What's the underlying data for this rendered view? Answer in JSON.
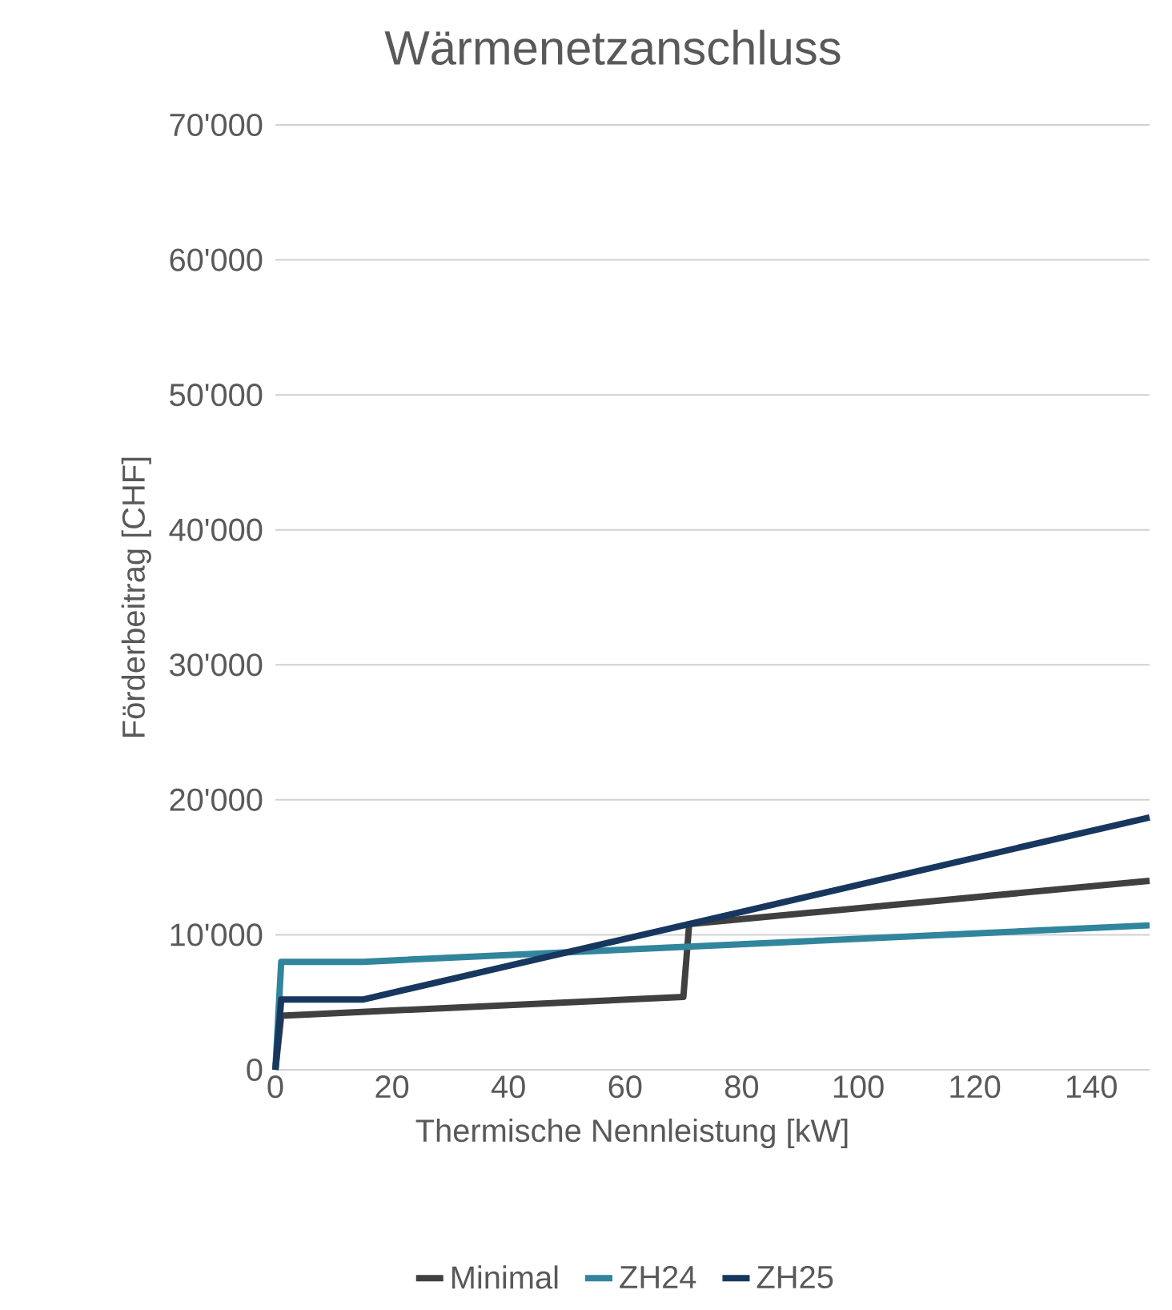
{
  "chart_data": {
    "type": "line",
    "title": "Wärmenetzanschluss",
    "xlabel": "Thermische Nennleistung [kW]",
    "ylabel": "Förderbeitrag [CHF]",
    "xlim": [
      0,
      150
    ],
    "xticks": [
      0,
      20,
      40,
      60,
      80,
      100,
      120,
      140
    ],
    "ylim": [
      0,
      70000
    ],
    "yticks": [
      0,
      {
        "value": 10000,
        "label": "10'000"
      },
      {
        "value": 20000,
        "label": "20'000"
      },
      {
        "value": 30000,
        "label": "30'000"
      },
      {
        "value": 40000,
        "label": "40'000"
      },
      {
        "value": 50000,
        "label": "50'000"
      },
      {
        "value": 60000,
        "label": "60'000"
      },
      {
        "value": 70000,
        "label": "70'000"
      }
    ],
    "grid": "y",
    "legend": "bottom",
    "marker": "none",
    "line_style": "solid",
    "series": [
      {
        "name": "Minimal",
        "color": "#404040",
        "x": [
          0,
          1,
          70,
          71,
          150
        ],
        "values": [
          0,
          4000,
          5400,
          10800,
          14000
        ]
      },
      {
        "name": "ZH24",
        "color": "#31859c",
        "x": [
          0,
          1,
          15,
          150
        ],
        "values": [
          0,
          8000,
          8000,
          10700
        ]
      },
      {
        "name": "ZH25",
        "color": "#17375e",
        "x": [
          0,
          1,
          15,
          150
        ],
        "values": [
          0,
          5200,
          5200,
          18700
        ]
      }
    ]
  }
}
